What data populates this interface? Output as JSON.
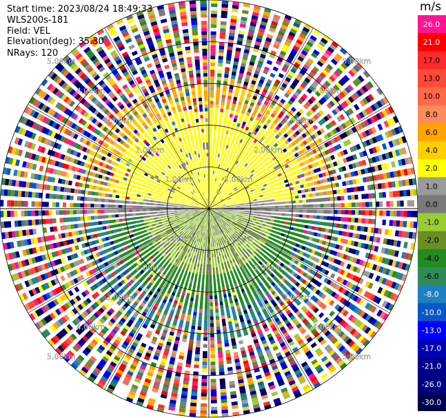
{
  "header": {
    "start_time": "Start time: 2023/08/24 18:49:33",
    "instrument": "WLS200s-181",
    "field": "Field: VEL",
    "elevation": "Elevation(deg): 35.30",
    "nrays": "NRays: 120"
  },
  "colorbar": {
    "unit": "m/s",
    "levels": [
      {
        "label": "26.0",
        "color": "#ff1493"
      },
      {
        "label": "21.0",
        "color": "#ff0000"
      },
      {
        "label": "17.0",
        "color": "#ff2a2a"
      },
      {
        "label": "13.0",
        "color": "#ff4a3a"
      },
      {
        "label": "10.0",
        "color": "#ff6a4a"
      },
      {
        "label": "8.0",
        "color": "#ff8a5a"
      },
      {
        "label": "6.0",
        "color": "#ffa500"
      },
      {
        "label": "4.0",
        "color": "#ffd000"
      },
      {
        "label": "2.0",
        "color": "#ffff00"
      },
      {
        "label": "1.0",
        "color": "#9b9b9b"
      },
      {
        "label": "0.0",
        "color": "#7a7a7a"
      },
      {
        "label": "-1.0",
        "color": "#9acd32"
      },
      {
        "label": "-2.0",
        "color": "#6b8e23"
      },
      {
        "label": "-4.0",
        "color": "#228b22"
      },
      {
        "label": "-6.0",
        "color": "#2e8b57"
      },
      {
        "label": "-8.0",
        "color": "#1e7fc1"
      },
      {
        "label": "-10.0",
        "color": "#0a58c8"
      },
      {
        "label": "-13.0",
        "color": "#0000ff"
      },
      {
        "label": "-17.0",
        "color": "#0000b0"
      },
      {
        "label": "-21.0",
        "color": "#00008b"
      },
      {
        "label": "-26.0",
        "color": "#000080"
      },
      {
        "label": "-30.0",
        "color": "#000050"
      }
    ]
  },
  "chart_data": {
    "type": "heatmap",
    "projection": "polar PPI",
    "field": "VEL",
    "units": "m/s",
    "nrays": 120,
    "max_range_km": 5.0,
    "range_rings_km": [
      1.0,
      2.0,
      3.0,
      4.0,
      5.0
    ],
    "ring_labels": [
      "1.00km",
      "2.00km",
      "3.00km",
      "4.00km",
      "5.00km"
    ],
    "spokes_every_deg": 30,
    "pattern": "near range (<~1.5km): positive ~2 m/s to north, ~0 to -2 m/s to south; mid range: 2-6 m/s north, -4 to -8 m/s south; far range: noisy values spanning full scale"
  }
}
